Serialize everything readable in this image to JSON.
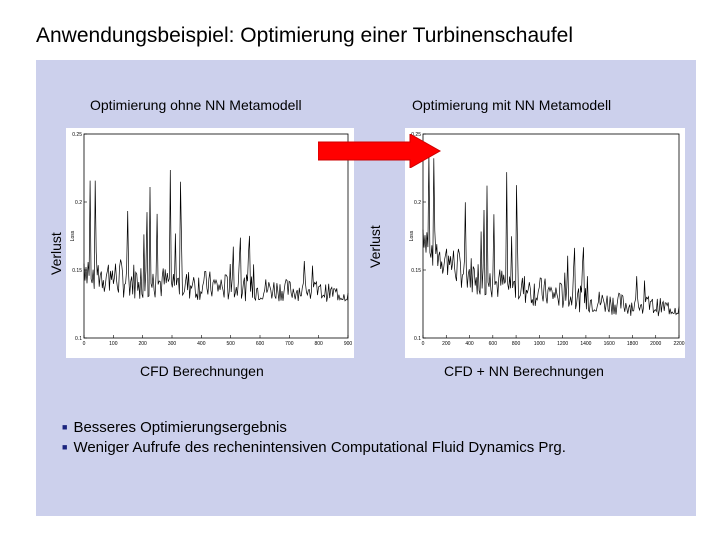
{
  "slide": {
    "title": "Anwendungsbeispiel: Optimierung einer Turbinenschaufel"
  },
  "left": {
    "heading": "Optimierung ohne NN Metamodell",
    "ylabel": "Verlust",
    "caption": "CFD Berechnungen"
  },
  "right": {
    "heading": "Optimierung mit NN Metamodell",
    "ylabel": "Verlust",
    "caption": "CFD + NN Berechnungen"
  },
  "bullets": [
    "Besseres Optimierungsergebnis",
    "Weniger Aufrufe des rechenintensiven Computational Fluid Dynamics Prg."
  ],
  "colors": {
    "panel": "#ccd0ec",
    "arrow": "#ff0000",
    "bullet": "#1a237e"
  },
  "chart_data": [
    {
      "type": "line",
      "title": "",
      "xlabel": "",
      "ylabel": "Loss",
      "x_ticks": [
        "0",
        "100",
        "200",
        "300",
        "400",
        "500",
        "600",
        "700",
        "800",
        "900"
      ],
      "y_ticks": [
        "0.1",
        "0.15",
        "0.2",
        "0.25"
      ],
      "xlim": [
        0,
        900
      ],
      "ylim": [
        0.1,
        0.25
      ],
      "series": [
        {
          "x": [
            0,
            50,
            100,
            150,
            200,
            250,
            300,
            350,
            400,
            450,
            500,
            550,
            600,
            650,
            700,
            750,
            800,
            850,
            900
          ],
          "values": [
            0.155,
            0.148,
            0.145,
            0.143,
            0.142,
            0.141,
            0.14,
            0.139,
            0.139,
            0.138,
            0.137,
            0.137,
            0.136,
            0.136,
            0.135,
            0.135,
            0.134,
            0.133,
            0.132
          ]
        }
      ]
    },
    {
      "type": "line",
      "title": "",
      "xlabel": "",
      "ylabel": "Loss",
      "x_ticks": [
        "0",
        "200",
        "400",
        "600",
        "800",
        "1000",
        "1200",
        "1400",
        "1600",
        "1800",
        "2000",
        "2200"
      ],
      "y_ticks": [
        "0.1",
        "0.15",
        "0.2",
        "0.25"
      ],
      "xlim": [
        0,
        2200
      ],
      "ylim": [
        0.1,
        0.25
      ],
      "series": [
        {
          "x": [
            0,
            100,
            200,
            300,
            400,
            500,
            600,
            800,
            1000,
            1200,
            1400,
            1600,
            1800,
            2000,
            2200
          ],
          "values": [
            0.18,
            0.165,
            0.158,
            0.152,
            0.148,
            0.144,
            0.141,
            0.137,
            0.134,
            0.131,
            0.128,
            0.126,
            0.124,
            0.123,
            0.122
          ]
        }
      ]
    }
  ]
}
